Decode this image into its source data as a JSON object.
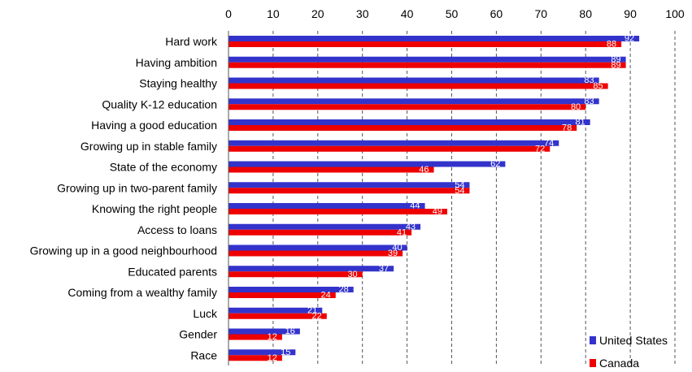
{
  "chart_data": {
    "type": "bar",
    "orientation": "horizontal",
    "categories": [
      "Hard work",
      "Having ambition",
      "Staying healthy",
      "Quality K-12 education",
      "Having a good education",
      "Growing up in stable family",
      "State of the economy",
      "Growing up in two-parent family",
      "Knowing the right people",
      "Access to loans",
      "Growing up in a good neighbourhood",
      "Educated parents",
      "Coming from a wealthy family",
      "Luck",
      "Gender",
      "Race"
    ],
    "series": [
      {
        "name": "United States",
        "color": "#3333cc",
        "values": [
          92,
          89,
          83,
          83,
          81,
          74,
          62,
          54,
          44,
          43,
          40,
          37,
          28,
          21,
          16,
          15
        ]
      },
      {
        "name": "Canada",
        "color": "#ee0000",
        "values": [
          88,
          89,
          85,
          80,
          78,
          72,
          46,
          54,
          49,
          41,
          39,
          30,
          24,
          22,
          12,
          12
        ]
      }
    ],
    "xlim": [
      0,
      100
    ],
    "xticks": [
      "0",
      "10",
      "20",
      "30",
      "40",
      "50",
      "60",
      "70",
      "80",
      "90",
      "100"
    ],
    "title": "",
    "xlabel": "",
    "ylabel": "",
    "grid": "vertical dashed",
    "legend_position": "bottom-right",
    "data_labels": true
  }
}
